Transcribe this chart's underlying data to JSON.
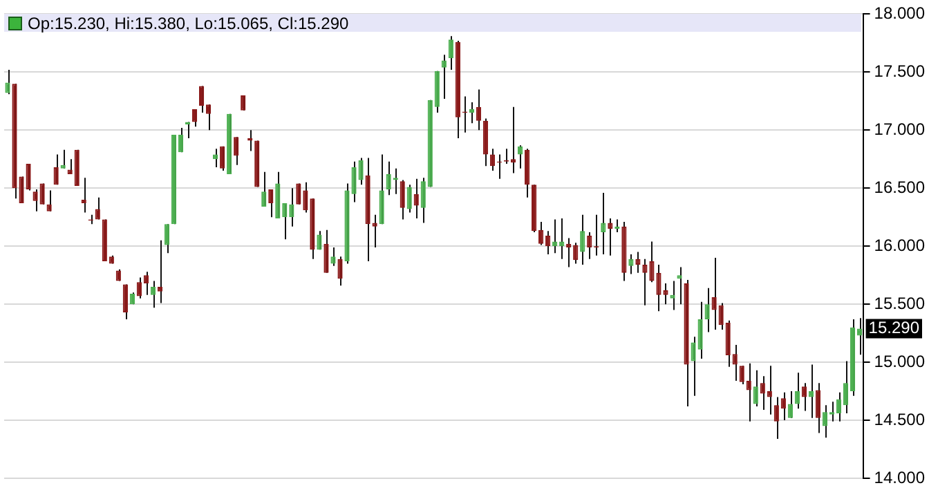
{
  "chart_data": {
    "type": "candlestick",
    "annotations": [
      "Op:15.230, Hi:15.380, Lo:15.065, Cl:15.290",
      {
        "text": "15.290",
        "y": 15.29
      }
    ],
    "categories": [
      null,
      null,
      null,
      null,
      null,
      null,
      null,
      null,
      null,
      null,
      null,
      null,
      null,
      null,
      null,
      null,
      null,
      null,
      null,
      null,
      null,
      null,
      null,
      null,
      null,
      null,
      null,
      null,
      null,
      null,
      null,
      null,
      null,
      null,
      null,
      null,
      null,
      null,
      null,
      null,
      null,
      null,
      null,
      null,
      null,
      null,
      null,
      null,
      null,
      null,
      null,
      null,
      null,
      null,
      null,
      null,
      null,
      null,
      null,
      null,
      null,
      null,
      null,
      null,
      null,
      null,
      null,
      null,
      null,
      null,
      null,
      null,
      null,
      null,
      null,
      null,
      null,
      null,
      null,
      null,
      null,
      null,
      null,
      null,
      null,
      null,
      null,
      null,
      null,
      null,
      null,
      null,
      null,
      null,
      null,
      null,
      null,
      null,
      null,
      null,
      null,
      null,
      null,
      null,
      null,
      null,
      null,
      null,
      null,
      null,
      null,
      null,
      null,
      null,
      null,
      null,
      null,
      null,
      null,
      null,
      null,
      null,
      null,
      null
    ],
    "ohlc": [
      [
        17.32,
        17.52,
        17.31,
        17.41
      ],
      [
        17.4,
        17.4,
        16.41,
        16.5
      ],
      [
        16.6,
        16.6,
        16.37,
        16.37
      ],
      [
        16.71,
        16.71,
        16.48,
        16.49
      ],
      [
        16.47,
        16.49,
        16.3,
        16.39
      ],
      [
        16.54,
        16.54,
        16.36,
        16.36
      ],
      [
        16.36,
        16.48,
        16.3,
        16.3
      ],
      [
        16.68,
        16.79,
        16.53,
        16.53
      ],
      [
        16.67,
        16.83,
        16.67,
        16.7
      ],
      [
        16.66,
        16.75,
        16.62,
        16.62
      ],
      [
        16.83,
        16.83,
        16.52,
        16.52
      ],
      [
        16.4,
        16.59,
        16.29,
        16.37
      ],
      [
        16.23,
        16.27,
        16.19,
        16.22
      ],
      [
        16.32,
        16.42,
        16.23,
        16.23
      ],
      [
        16.23,
        16.23,
        15.87,
        15.87
      ],
      [
        15.91,
        15.92,
        15.85,
        15.85
      ],
      [
        15.79,
        15.8,
        15.7,
        15.7
      ],
      [
        15.67,
        15.67,
        15.37,
        15.43
      ],
      [
        15.5,
        15.6,
        15.5,
        15.59
      ],
      [
        15.69,
        15.73,
        15.55,
        15.57
      ],
      [
        15.75,
        15.78,
        15.58,
        15.68
      ],
      [
        15.58,
        15.7,
        15.47,
        15.65
      ],
      [
        15.65,
        16.05,
        15.51,
        15.61
      ],
      [
        16.01,
        16.19,
        15.94,
        16.19
      ],
      [
        16.19,
        16.96,
        16.19,
        16.96
      ],
      [
        16.81,
        17.02,
        16.81,
        16.96
      ],
      [
        17.05,
        17.07,
        16.93,
        17.07
      ],
      [
        17.18,
        17.18,
        17.03,
        17.07
      ],
      [
        17.38,
        17.38,
        17.15,
        17.21
      ],
      [
        17.22,
        17.22,
        17.0,
        17.14
      ],
      [
        16.75,
        16.84,
        16.68,
        16.79
      ],
      [
        16.86,
        16.86,
        16.65,
        16.67
      ],
      [
        16.62,
        17.14,
        16.62,
        17.14
      ],
      [
        16.94,
        16.94,
        16.7,
        16.78
      ],
      [
        17.3,
        17.3,
        17.17,
        17.17
      ],
      [
        16.93,
        17.0,
        16.82,
        16.91
      ],
      [
        16.91,
        16.91,
        16.51,
        16.51
      ],
      [
        16.34,
        16.64,
        16.34,
        16.47
      ],
      [
        16.49,
        16.49,
        16.25,
        16.37
      ],
      [
        16.24,
        16.64,
        16.24,
        16.54
      ],
      [
        16.25,
        16.37,
        16.06,
        16.37
      ],
      [
        16.25,
        16.5,
        16.17,
        16.36
      ],
      [
        16.54,
        16.54,
        16.36,
        16.36
      ],
      [
        16.48,
        16.55,
        16.29,
        16.31
      ],
      [
        16.41,
        16.41,
        15.89,
        15.97
      ],
      [
        15.97,
        16.13,
        15.97,
        16.1
      ],
      [
        16.02,
        16.14,
        15.77,
        15.77
      ],
      [
        15.85,
        15.99,
        15.83,
        15.91
      ],
      [
        15.89,
        15.91,
        15.66,
        15.72
      ],
      [
        15.87,
        16.54,
        15.85,
        16.48
      ],
      [
        16.45,
        16.73,
        16.38,
        16.68
      ],
      [
        16.57,
        16.76,
        16.53,
        16.74
      ],
      [
        16.61,
        16.76,
        15.87,
        16.19
      ],
      [
        16.2,
        16.27,
        15.99,
        16.17
      ],
      [
        16.19,
        16.79,
        16.19,
        16.48
      ],
      [
        16.49,
        16.73,
        16.44,
        16.62
      ],
      [
        16.57,
        16.67,
        16.45,
        16.59
      ],
      [
        16.56,
        16.57,
        16.23,
        16.33
      ],
      [
        16.32,
        16.53,
        16.29,
        16.51
      ],
      [
        16.45,
        16.58,
        16.24,
        16.35
      ],
      [
        16.33,
        16.59,
        16.2,
        16.56
      ],
      [
        16.51,
        17.26,
        16.51,
        17.26
      ],
      [
        17.2,
        17.51,
        17.15,
        17.51
      ],
      [
        17.54,
        17.65,
        17.27,
        17.6
      ],
      [
        17.62,
        17.81,
        17.52,
        17.78
      ],
      [
        17.76,
        17.77,
        16.93,
        17.11
      ],
      [
        17.16,
        17.29,
        16.98,
        17.15
      ],
      [
        17.15,
        17.24,
        17.06,
        17.18
      ],
      [
        17.2,
        17.35,
        17.0,
        17.08
      ],
      [
        17.08,
        17.1,
        16.69,
        16.79
      ],
      [
        16.79,
        16.84,
        16.65,
        16.69
      ],
      [
        16.73,
        16.79,
        16.58,
        16.72
      ],
      [
        16.74,
        16.84,
        16.71,
        16.73
      ],
      [
        16.75,
        17.2,
        16.63,
        16.72
      ],
      [
        16.79,
        16.87,
        16.67,
        16.86
      ],
      [
        16.83,
        16.84,
        16.42,
        16.53
      ],
      [
        16.53,
        16.53,
        16.12,
        16.13
      ],
      [
        16.14,
        16.21,
        16.01,
        16.02
      ],
      [
        16.09,
        16.13,
        15.93,
        16.0
      ],
      [
        16.0,
        16.23,
        15.94,
        16.04
      ],
      [
        16.0,
        16.24,
        15.89,
        16.04
      ],
      [
        16.02,
        16.07,
        15.82,
        15.99
      ],
      [
        16.01,
        16.03,
        15.85,
        15.88
      ],
      [
        15.95,
        16.27,
        15.84,
        16.13
      ],
      [
        16.09,
        16.12,
        15.89,
        15.99
      ],
      [
        16.0,
        16.27,
        15.92,
        15.99
      ],
      [
        16.12,
        16.46,
        15.93,
        16.2
      ],
      [
        16.2,
        16.24,
        15.92,
        16.15
      ],
      [
        16.15,
        16.23,
        16.12,
        16.17
      ],
      [
        16.17,
        16.21,
        15.7,
        15.77
      ],
      [
        15.83,
        15.93,
        15.76,
        15.89
      ],
      [
        15.89,
        15.95,
        15.77,
        15.84
      ],
      [
        15.84,
        15.89,
        15.49,
        15.77
      ],
      [
        15.87,
        16.04,
        15.69,
        15.7
      ],
      [
        15.77,
        15.84,
        15.44,
        15.58
      ],
      [
        15.62,
        15.68,
        15.5,
        15.58
      ],
      [
        15.55,
        15.7,
        15.45,
        15.58
      ],
      [
        15.72,
        15.82,
        15.5,
        15.75
      ],
      [
        15.68,
        15.71,
        14.62,
        14.98
      ],
      [
        15.01,
        15.22,
        14.71,
        15.17
      ],
      [
        15.11,
        15.52,
        15.03,
        15.37
      ],
      [
        15.37,
        15.64,
        15.26,
        15.5
      ],
      [
        15.56,
        15.9,
        15.28,
        15.45
      ],
      [
        15.49,
        15.51,
        15.28,
        15.32
      ],
      [
        15.34,
        15.36,
        14.96,
        15.06
      ],
      [
        15.07,
        15.15,
        14.84,
        14.98
      ],
      [
        14.97,
        14.97,
        14.81,
        14.83
      ],
      [
        14.84,
        14.99,
        14.49,
        14.76
      ],
      [
        14.64,
        14.93,
        14.62,
        14.79
      ],
      [
        14.82,
        14.88,
        14.59,
        14.73
      ],
      [
        14.75,
        14.97,
        14.55,
        14.7
      ],
      [
        14.63,
        14.7,
        14.34,
        14.49
      ],
      [
        14.69,
        14.74,
        14.5,
        14.6
      ],
      [
        14.52,
        14.75,
        14.52,
        14.64
      ],
      [
        14.64,
        14.91,
        14.6,
        14.75
      ],
      [
        14.79,
        14.82,
        14.58,
        14.7
      ],
      [
        14.7,
        14.98,
        14.52,
        14.75
      ],
      [
        14.76,
        14.82,
        14.39,
        14.52
      ],
      [
        14.45,
        14.63,
        14.35,
        14.57
      ],
      [
        14.55,
        14.66,
        14.49,
        14.57
      ],
      [
        14.56,
        14.74,
        14.49,
        14.68
      ],
      [
        14.63,
        15.01,
        14.56,
        14.82
      ],
      [
        14.75,
        15.37,
        14.71,
        15.3
      ],
      [
        15.23,
        15.38,
        15.065,
        15.29
      ]
    ],
    "colors": [
      "#4caf50",
      "#8b1a1a",
      "#8b1a1a",
      "#8b1a1a",
      "#8b1a1a",
      "#8b1a1a",
      "#8b1a1a",
      "#8b1a1a",
      "#4caf50",
      "#8b1a1a",
      "#8b1a1a",
      "#8b1a1a",
      "#8b1a1a",
      "#8b1a1a",
      "#8b1a1a",
      "#8b1a1a",
      "#8b1a1a",
      "#8b1a1a",
      "#4caf50",
      "#8b1a1a",
      "#8b1a1a",
      "#4caf50",
      "#8b1a1a",
      "#4caf50",
      "#4caf50",
      "#4caf50",
      "#4caf50",
      "#8b1a1a",
      "#8b1a1a",
      "#8b1a1a",
      "#4caf50",
      "#8b1a1a",
      "#4caf50",
      "#8b1a1a",
      "#8b1a1a",
      "#8b1a1a",
      "#8b1a1a",
      "#4caf50",
      "#8b1a1a",
      "#4caf50",
      "#4caf50",
      "#4caf50",
      "#8b1a1a",
      "#8b1a1a",
      "#8b1a1a",
      "#4caf50",
      "#8b1a1a",
      "#4caf50",
      "#8b1a1a",
      "#4caf50",
      "#4caf50",
      "#4caf50",
      "#8b1a1a",
      "#8b1a1a",
      "#4caf50",
      "#4caf50",
      "#4caf50",
      "#8b1a1a",
      "#4caf50",
      "#8b1a1a",
      "#4caf50",
      "#4caf50",
      "#4caf50",
      "#4caf50",
      "#4caf50",
      "#8b1a1a",
      "#8b1a1a",
      "#4caf50",
      "#8b1a1a",
      "#8b1a1a",
      "#8b1a1a",
      "#8b1a1a",
      "#8b1a1a",
      "#8b1a1a",
      "#4caf50",
      "#8b1a1a",
      "#8b1a1a",
      "#8b1a1a",
      "#8b1a1a",
      "#4caf50",
      "#4caf50",
      "#8b1a1a",
      "#8b1a1a",
      "#4caf50",
      "#8b1a1a",
      "#8b1a1a",
      "#4caf50",
      "#8b1a1a",
      "#4caf50",
      "#8b1a1a",
      "#4caf50",
      "#8b1a1a",
      "#8b1a1a",
      "#8b1a1a",
      "#8b1a1a",
      "#8b1a1a",
      "#4caf50",
      "#4caf50",
      "#8b1a1a",
      "#4caf50",
      "#4caf50",
      "#4caf50",
      "#8b1a1a",
      "#8b1a1a",
      "#8b1a1a",
      "#8b1a1a",
      "#8b1a1a",
      "#8b1a1a",
      "#4caf50",
      "#8b1a1a",
      "#8b1a1a",
      "#8b1a1a",
      "#8b1a1a",
      "#4caf50",
      "#4caf50",
      "#8b1a1a",
      "#4caf50",
      "#8b1a1a",
      "#4caf50",
      "#4caf50",
      "#4caf50",
      "#4caf50",
      "#4caf50",
      "#4caf50"
    ],
    "ylim": [
      14,
      18
    ],
    "yticks": [
      {
        "value": 14,
        "label": "14.000"
      },
      {
        "value": 14.5,
        "label": "14.500"
      },
      {
        "value": 15,
        "label": "15.000"
      },
      {
        "value": 15.5,
        "label": "15.500"
      },
      {
        "value": 16,
        "label": "16.000"
      },
      {
        "value": 16.5,
        "label": "16.500"
      },
      {
        "value": 17,
        "label": "17.000"
      },
      {
        "value": 17.5,
        "label": "17.500"
      },
      {
        "value": 18,
        "label": "18.000"
      }
    ],
    "grid": "y",
    "tick_labels": "y",
    "legend": false
  }
}
